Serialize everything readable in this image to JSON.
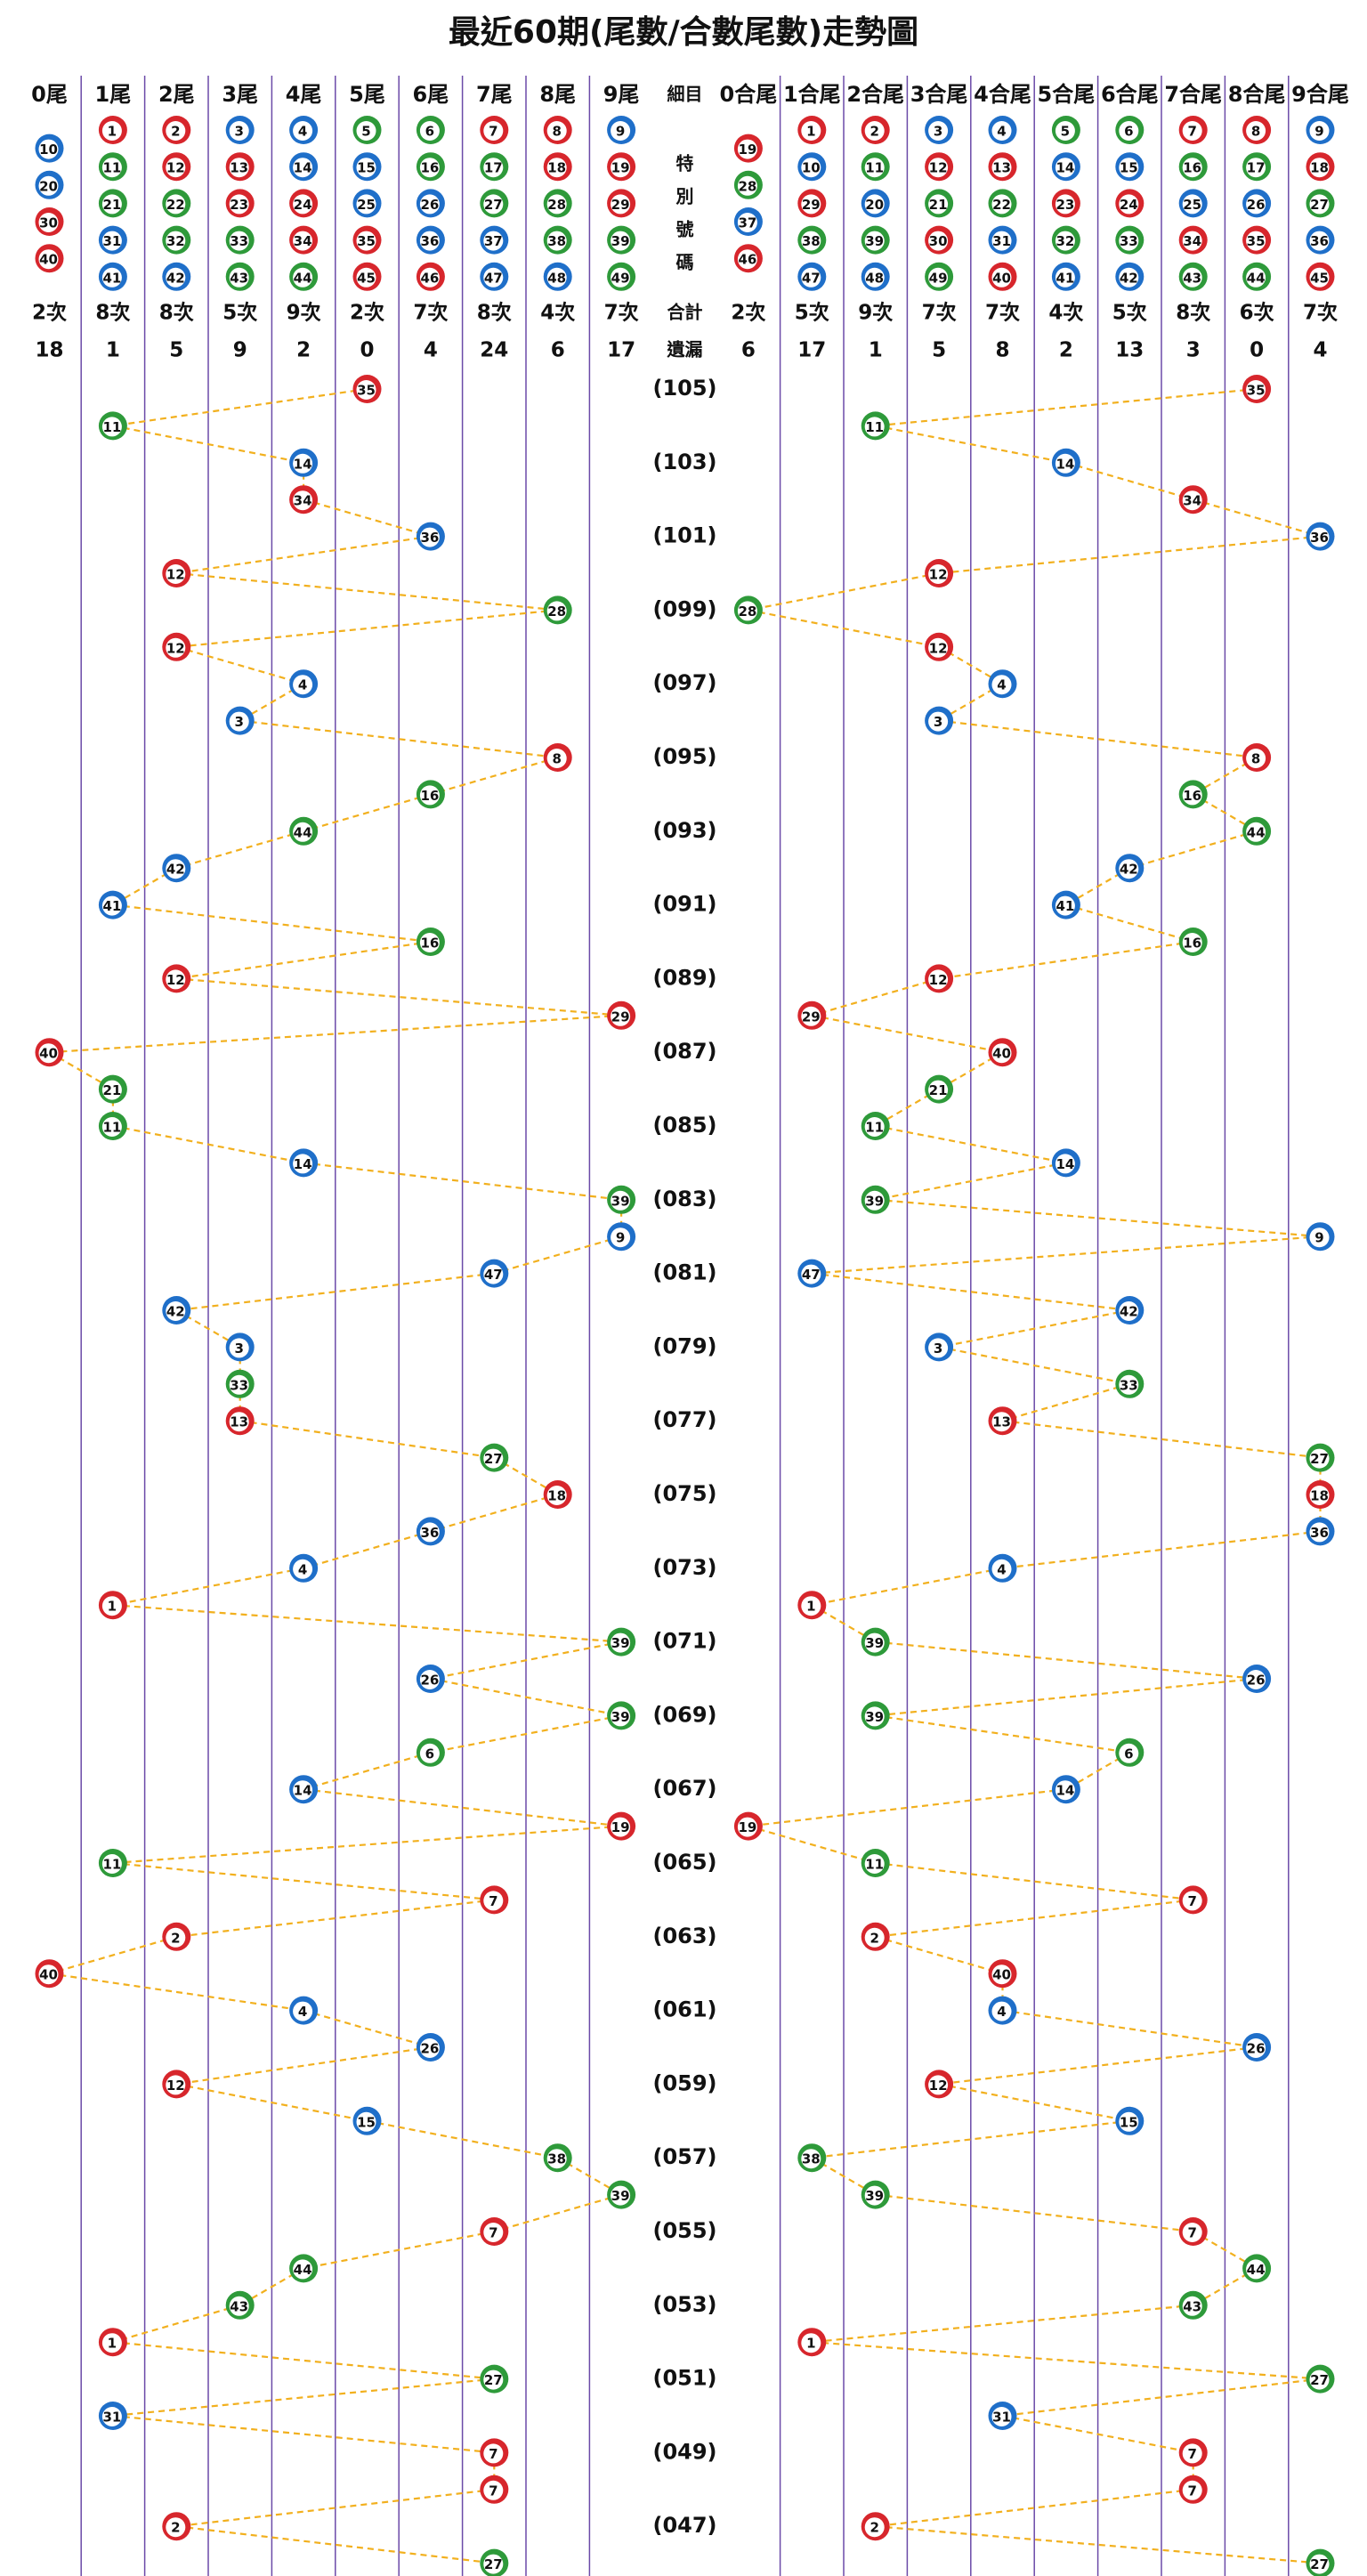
{
  "title": "最近60期(尾數/合數尾數)走勢圖",
  "left": {
    "headers": [
      "0尾",
      "1尾",
      "2尾",
      "3尾",
      "4尾",
      "5尾",
      "6尾",
      "7尾",
      "8尾",
      "9尾"
    ],
    "balls": [
      [
        10,
        20,
        30,
        40
      ],
      [
        1,
        11,
        21,
        31,
        41
      ],
      [
        2,
        12,
        22,
        32,
        42
      ],
      [
        3,
        13,
        23,
        33,
        43
      ],
      [
        4,
        14,
        24,
        34,
        44
      ],
      [
        5,
        15,
        25,
        35,
        45
      ],
      [
        6,
        16,
        26,
        36,
        46
      ],
      [
        7,
        17,
        27,
        37,
        47
      ],
      [
        8,
        18,
        28,
        38,
        48
      ],
      [
        9,
        19,
        29,
        39,
        49
      ]
    ],
    "counts": [
      "2次",
      "8次",
      "8次",
      "5次",
      "9次",
      "2次",
      "7次",
      "8次",
      "4次",
      "7次"
    ],
    "misses": [
      18,
      1,
      5,
      9,
      2,
      0,
      4,
      24,
      6,
      17
    ]
  },
  "middle": {
    "detail": "細目",
    "special": [
      "特",
      "別",
      "號",
      "碼"
    ],
    "total": "合計",
    "miss": "遺漏"
  },
  "right": {
    "headers": [
      "0合尾",
      "1合尾",
      "2合尾",
      "3合尾",
      "4合尾",
      "5合尾",
      "6合尾",
      "7合尾",
      "8合尾",
      "9合尾"
    ],
    "balls": [
      [
        19,
        28,
        37,
        46
      ],
      [
        1,
        10,
        29,
        38,
        47
      ],
      [
        2,
        11,
        20,
        39,
        48
      ],
      [
        3,
        12,
        21,
        30,
        49
      ],
      [
        4,
        13,
        22,
        31,
        40
      ],
      [
        5,
        14,
        23,
        32,
        41
      ],
      [
        6,
        15,
        24,
        33,
        42
      ],
      [
        7,
        16,
        25,
        34,
        43
      ],
      [
        8,
        17,
        26,
        35,
        44
      ],
      [
        9,
        18,
        27,
        36,
        45
      ]
    ],
    "counts": [
      "2次",
      "5次",
      "9次",
      "7次",
      "7次",
      "4次",
      "5次",
      "8次",
      "6次",
      "7次"
    ],
    "misses": [
      6,
      17,
      1,
      5,
      8,
      2,
      13,
      3,
      0,
      4
    ]
  },
  "draws": {
    "periods": [
      "(105)",
      null,
      "(103)",
      null,
      "(101)",
      null,
      "(099)",
      null,
      "(097)",
      null,
      "(095)",
      null,
      "(093)",
      null,
      "(091)",
      null,
      "(089)",
      null,
      "(087)",
      null,
      "(085)",
      null,
      "(083)",
      null,
      "(081)",
      null,
      "(079)",
      null,
      "(077)",
      null,
      "(075)",
      null,
      "(073)",
      null,
      "(071)",
      null,
      "(069)",
      null,
      "(067)",
      null,
      "(065)",
      null,
      "(063)",
      null,
      "(061)",
      null,
      "(059)",
      null,
      "(057)",
      null,
      "(055)",
      null,
      "(053)",
      null,
      "(051)",
      null,
      "(049)",
      null,
      "(047)",
      null
    ],
    "numbers": [
      35,
      11,
      14,
      34,
      36,
      12,
      28,
      12,
      4,
      3,
      8,
      16,
      44,
      42,
      41,
      16,
      12,
      29,
      40,
      21,
      11,
      14,
      39,
      9,
      47,
      42,
      3,
      33,
      13,
      27,
      18,
      36,
      4,
      1,
      39,
      26,
      39,
      6,
      14,
      19,
      11,
      7,
      2,
      40,
      4,
      26,
      12,
      15,
      38,
      39,
      7,
      44,
      43,
      1,
      27,
      31,
      7,
      7,
      2,
      27
    ]
  },
  "ball_colors": {
    "#d7262c": [
      1,
      2,
      7,
      8,
      12,
      13,
      18,
      19,
      23,
      24,
      29,
      30,
      34,
      35,
      40,
      45,
      46
    ],
    "#1f6fc9": [
      3,
      4,
      9,
      10,
      14,
      15,
      20,
      25,
      26,
      31,
      36,
      37,
      41,
      42,
      47,
      48
    ],
    "#2e9a3a": [
      5,
      6,
      11,
      16,
      17,
      21,
      22,
      27,
      28,
      32,
      33,
      38,
      39,
      43,
      44,
      49
    ]
  },
  "trend_line_color": "#f2b01e",
  "divider_color": "#6b4aa8"
}
